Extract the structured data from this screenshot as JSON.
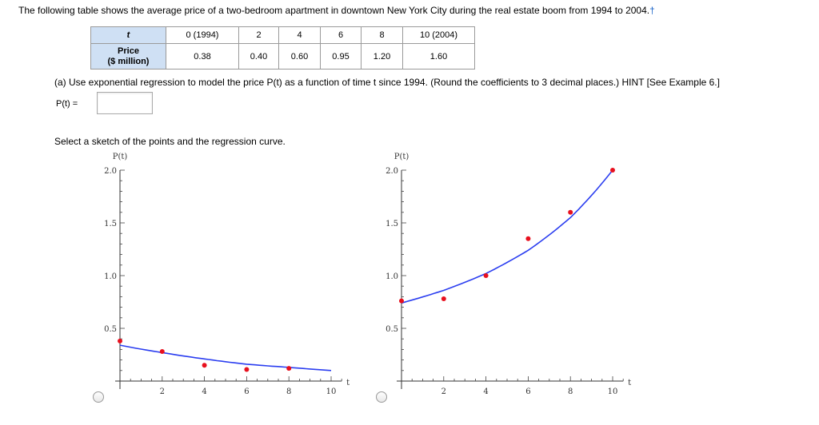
{
  "intro": {
    "text": "The following table shows the average price of a two-bedroom apartment in downtown New York City during the real estate boom from 1994 to 2004.",
    "dagger": "†"
  },
  "table": {
    "row1_header": "t",
    "row2_header_line1": "Price",
    "row2_header_line2": "($ million)",
    "t_values": [
      "0 (1994)",
      "2",
      "4",
      "6",
      "8",
      "10 (2004)"
    ],
    "price_values": [
      "0.38",
      "0.40",
      "0.60",
      "0.95",
      "1.20",
      "1.60"
    ]
  },
  "question": {
    "text": "(a) Use exponential regression to model the price P(t) as a function of time t since 1994. (Round the coefficients to 3 decimal places.) HINT [See Example 6.]",
    "input_label": "P(t) =",
    "input_value": ""
  },
  "sketch_prompt": "Select a sketch of the points and the regression curve.",
  "chart_data": [
    {
      "type": "scatter",
      "ylabel": "P(t)",
      "xlabel": "t",
      "xlim": [
        0,
        10.5
      ],
      "ylim": [
        0,
        2.0
      ],
      "x_ticks": [
        "2",
        "4",
        "6",
        "8",
        "10"
      ],
      "y_ticks": [
        "0.5",
        "1.0",
        "1.5",
        "2.0"
      ],
      "points": {
        "x": [
          0,
          2,
          4,
          6,
          8
        ],
        "y": [
          0.38,
          0.28,
          0.15,
          0.11,
          0.12
        ]
      },
      "curve": {
        "x": [
          0,
          2,
          4,
          6,
          8,
          10
        ],
        "y": [
          0.34,
          0.27,
          0.21,
          0.16,
          0.13,
          0.1
        ]
      },
      "point_color": "#e8101e",
      "curve_color": "#2b3ef0",
      "selected": false
    },
    {
      "type": "scatter",
      "ylabel": "P(t)",
      "xlabel": "t",
      "xlim": [
        0,
        10.5
      ],
      "ylim": [
        0,
        2.0
      ],
      "x_ticks": [
        "2",
        "4",
        "6",
        "8",
        "10"
      ],
      "y_ticks": [
        "0.5",
        "1.0",
        "1.5",
        "2.0"
      ],
      "points": {
        "x": [
          0,
          2,
          4,
          6,
          8,
          10
        ],
        "y": [
          0.76,
          0.78,
          1.0,
          1.35,
          1.6,
          2.0
        ]
      },
      "curve": {
        "x": [
          0,
          2,
          4,
          6,
          8,
          10
        ],
        "y": [
          0.74,
          0.86,
          1.02,
          1.24,
          1.55,
          2.0
        ]
      },
      "point_color": "#e8101e",
      "curve_color": "#2b3ef0",
      "selected": false
    }
  ]
}
